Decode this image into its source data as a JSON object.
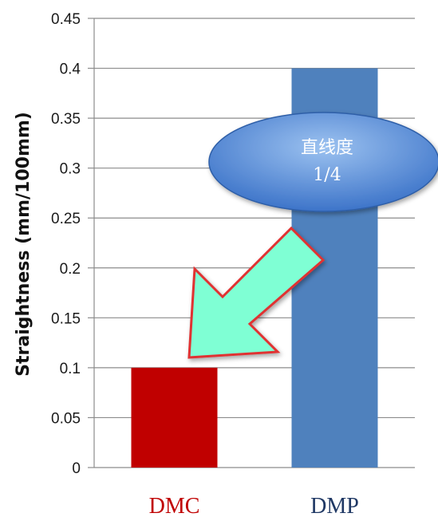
{
  "chart_data": {
    "type": "bar",
    "categories": [
      "DMC",
      "DMP"
    ],
    "values": [
      0.1,
      0.4
    ],
    "ylabel": "Straightness (mm/100mm)",
    "ylim": [
      0,
      0.45
    ],
    "y_ticks": [
      "0",
      "0.05",
      "0.1",
      "0.15",
      "0.2",
      "0.25",
      "0.3",
      "0.35",
      "0.4",
      "0.45"
    ],
    "grid": true,
    "bar_colors": [
      "#c00000",
      "#4f81bd"
    ],
    "category_label_colors": [
      "#c00000",
      "#1f3864"
    ]
  },
  "annotation": {
    "line1": "直线度",
    "line2": "1/4",
    "bubble_color": "#5b8ed6",
    "arrow_fill": "#7fffd4",
    "arrow_stroke": "#e03030"
  }
}
